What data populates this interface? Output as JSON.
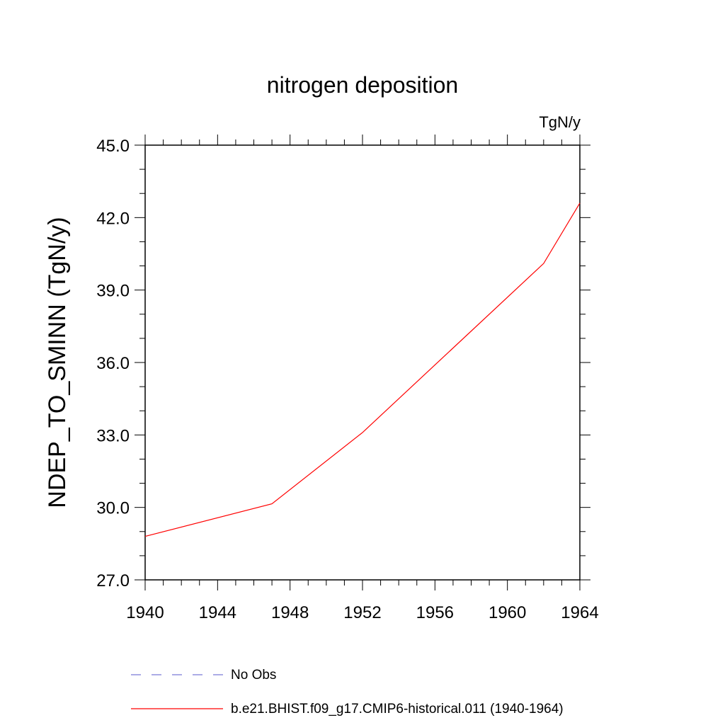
{
  "chart_data": {
    "type": "line",
    "title": "nitrogen deposition",
    "units_label": "TgN/y",
    "xlabel": "",
    "ylabel": "NDEP_TO_SMINN  (TgN/y)",
    "xlim": [
      1940,
      1964
    ],
    "ylim": [
      27.0,
      45.0
    ],
    "x_ticks": [
      1940,
      1944,
      1948,
      1952,
      1956,
      1960,
      1964
    ],
    "x_tick_labels": [
      "1940",
      "1944",
      "1948",
      "1952",
      "1956",
      "1960",
      "1964"
    ],
    "y_ticks": [
      27.0,
      30.0,
      33.0,
      36.0,
      39.0,
      42.0,
      45.0
    ],
    "y_tick_labels": [
      "27.0",
      "30.0",
      "33.0",
      "36.0",
      "39.0",
      "42.0",
      "45.0"
    ],
    "x_minor_step": 1,
    "y_minor_step": 1.0,
    "grid": false,
    "legend_position": "bottom",
    "series": [
      {
        "name": "b.e21.BHIST.f09_g17.CMIP6-historical.011 (1940-1964)",
        "color": "#ff0000",
        "dash": "solid",
        "x": [
          1940,
          1947,
          1952,
          1962,
          1964
        ],
        "y": [
          28.8,
          30.15,
          33.1,
          40.1,
          42.6
        ]
      }
    ],
    "legend": [
      {
        "label": "No Obs",
        "color": "#7b7bd6",
        "dash": "dashed"
      },
      {
        "label": "b.e21.BHIST.f09_g17.CMIP6-historical.011 (1940-1964)",
        "color": "#ff0000",
        "dash": "solid"
      }
    ]
  }
}
